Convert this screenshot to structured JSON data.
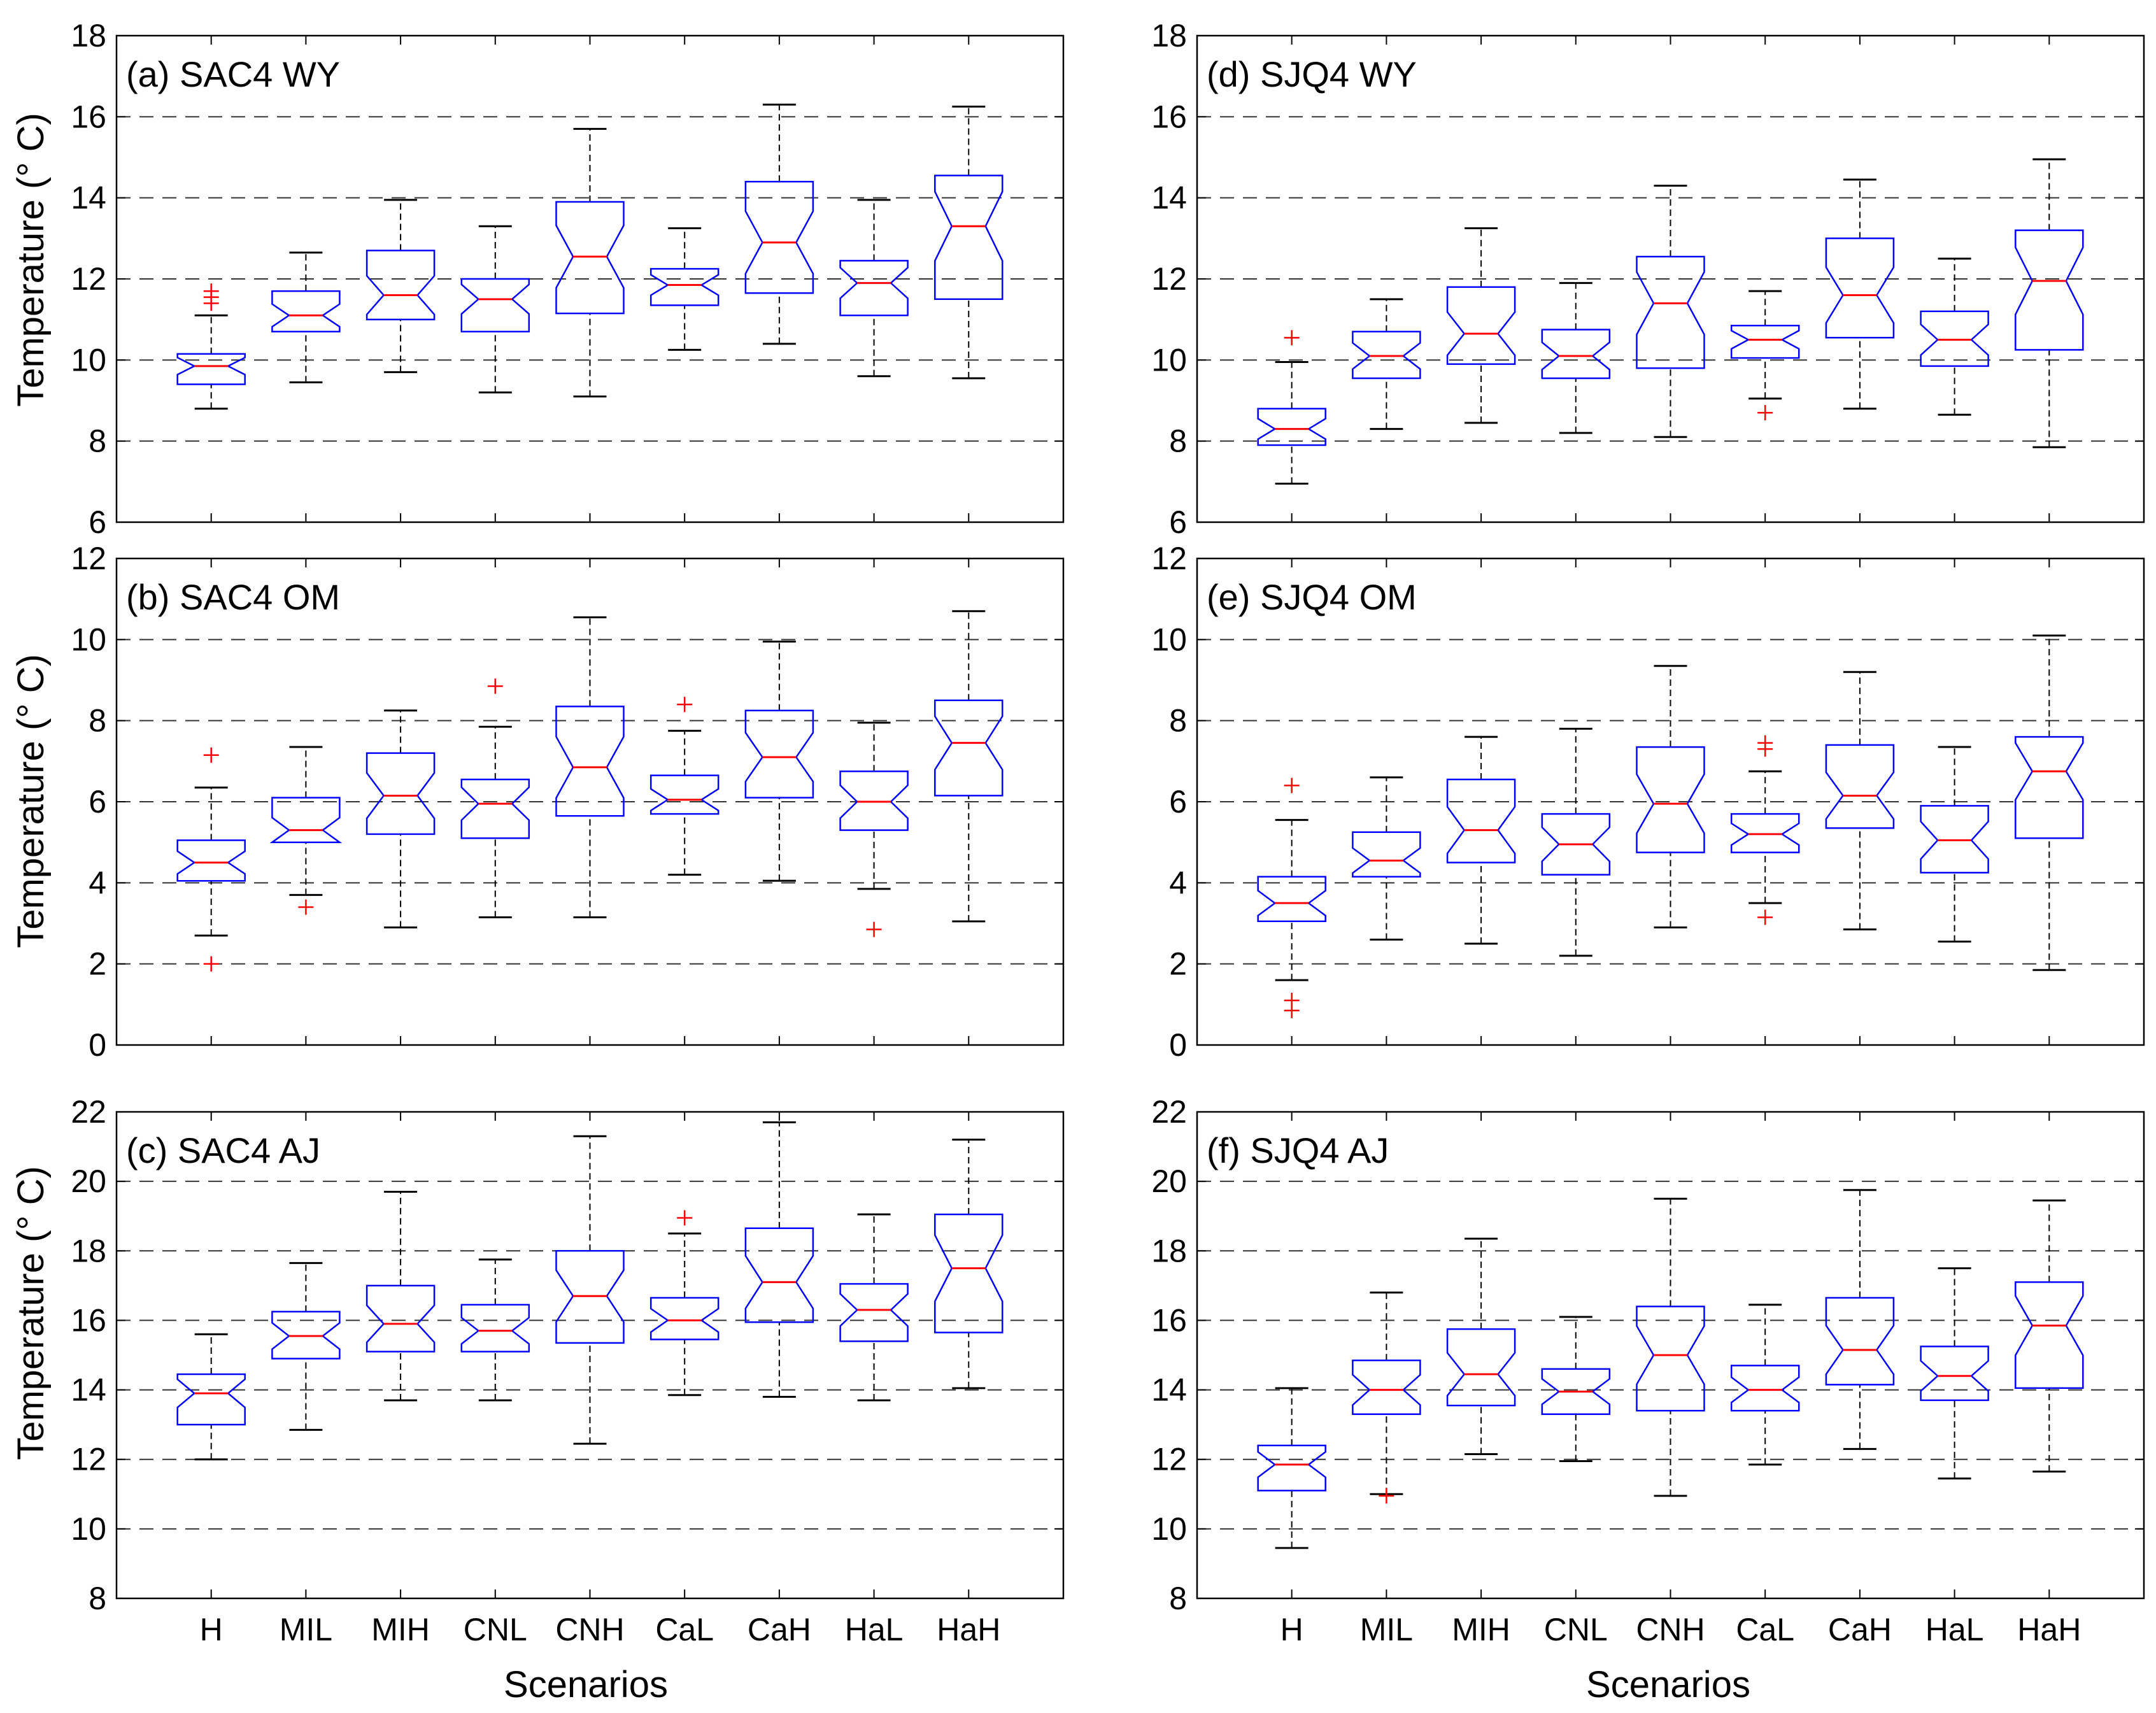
{
  "figure": {
    "x_tick_labels": [
      "H",
      "MIL",
      "MIH",
      "CNL",
      "CNH",
      "CaL",
      "CaH",
      "HaL",
      "HaH"
    ],
    "xlabel": "Scenarios",
    "ylabel": "Temperature (° C)"
  },
  "colors": {
    "box": "#0000ff",
    "median": "#ff0000",
    "whisker": "#000000",
    "outlier": "#ff0000",
    "grid": "#000000"
  },
  "chart_data": [
    {
      "type": "box",
      "title": "(a) SAC4 WY",
      "xlabel": "",
      "ylabel": "Temperature (° C)",
      "ylim": [
        6,
        18
      ],
      "yticks": [
        6,
        8,
        10,
        12,
        14,
        16,
        18
      ],
      "categories": [
        "H",
        "MIL",
        "MIH",
        "CNL",
        "CNH",
        "CaL",
        "CaH",
        "HaL",
        "HaH"
      ],
      "boxes": [
        {
          "min": 8.8,
          "q1": 9.4,
          "median": 9.85,
          "q3": 10.15,
          "max": 11.1,
          "outliers": [
            11.4,
            11.55,
            11.7
          ]
        },
        {
          "min": 9.45,
          "q1": 10.7,
          "median": 11.1,
          "q3": 11.7,
          "max": 12.65,
          "outliers": []
        },
        {
          "min": 9.7,
          "q1": 11.0,
          "median": 11.6,
          "q3": 12.7,
          "max": 13.95,
          "outliers": []
        },
        {
          "min": 9.2,
          "q1": 10.7,
          "median": 11.5,
          "q3": 12.0,
          "max": 13.3,
          "outliers": []
        },
        {
          "min": 9.1,
          "q1": 11.15,
          "median": 12.55,
          "q3": 13.9,
          "max": 15.7,
          "outliers": []
        },
        {
          "min": 10.25,
          "q1": 11.35,
          "median": 11.85,
          "q3": 12.25,
          "max": 13.25,
          "outliers": []
        },
        {
          "min": 10.4,
          "q1": 11.65,
          "median": 12.9,
          "q3": 14.4,
          "max": 16.3,
          "outliers": []
        },
        {
          "min": 9.6,
          "q1": 11.1,
          "median": 11.9,
          "q3": 12.45,
          "max": 13.95,
          "outliers": []
        },
        {
          "min": 9.55,
          "q1": 11.5,
          "median": 13.3,
          "q3": 14.55,
          "max": 16.25,
          "outliers": []
        }
      ]
    },
    {
      "type": "box",
      "title": "(b) SAC4 OM",
      "xlabel": "",
      "ylabel": "Temperature (° C)",
      "ylim": [
        0,
        12
      ],
      "yticks": [
        0,
        2,
        4,
        6,
        8,
        10,
        12
      ],
      "categories": [
        "H",
        "MIL",
        "MIH",
        "CNL",
        "CNH",
        "CaL",
        "CaH",
        "HaL",
        "HaH"
      ],
      "boxes": [
        {
          "min": 2.7,
          "q1": 4.05,
          "median": 4.5,
          "q3": 5.05,
          "max": 6.35,
          "outliers": [
            2.0,
            7.15
          ]
        },
        {
          "min": 3.7,
          "q1": 5.0,
          "median": 5.3,
          "q3": 6.1,
          "max": 7.35,
          "outliers": [
            3.4
          ]
        },
        {
          "min": 2.9,
          "q1": 5.2,
          "median": 6.15,
          "q3": 7.2,
          "max": 8.25,
          "outliers": []
        },
        {
          "min": 3.15,
          "q1": 5.1,
          "median": 5.95,
          "q3": 6.55,
          "max": 7.85,
          "outliers": [
            8.85
          ]
        },
        {
          "min": 3.15,
          "q1": 5.65,
          "median": 6.85,
          "q3": 8.35,
          "max": 10.55,
          "outliers": []
        },
        {
          "min": 4.2,
          "q1": 5.7,
          "median": 6.05,
          "q3": 6.65,
          "max": 7.75,
          "outliers": [
            8.4
          ]
        },
        {
          "min": 4.05,
          "q1": 6.1,
          "median": 7.1,
          "q3": 8.25,
          "max": 9.95,
          "outliers": []
        },
        {
          "min": 3.85,
          "q1": 5.3,
          "median": 6.0,
          "q3": 6.75,
          "max": 7.95,
          "outliers": [
            2.85
          ]
        },
        {
          "min": 3.05,
          "q1": 6.15,
          "median": 7.45,
          "q3": 8.5,
          "max": 10.7,
          "outliers": []
        }
      ]
    },
    {
      "type": "box",
      "title": "(c) SAC4 AJ",
      "xlabel": "Scenarios",
      "ylabel": "Temperature (° C)",
      "ylim": [
        8,
        22
      ],
      "yticks": [
        8,
        10,
        12,
        14,
        16,
        18,
        20,
        22
      ],
      "categories": [
        "H",
        "MIL",
        "MIH",
        "CNL",
        "CNH",
        "CaL",
        "CaH",
        "HaL",
        "HaH"
      ],
      "boxes": [
        {
          "min": 12.0,
          "q1": 13.0,
          "median": 13.9,
          "q3": 14.45,
          "max": 15.6,
          "outliers": []
        },
        {
          "min": 12.85,
          "q1": 14.9,
          "median": 15.55,
          "q3": 16.25,
          "max": 17.65,
          "outliers": []
        },
        {
          "min": 13.7,
          "q1": 15.1,
          "median": 15.9,
          "q3": 17.0,
          "max": 19.7,
          "outliers": []
        },
        {
          "min": 13.7,
          "q1": 15.1,
          "median": 15.7,
          "q3": 16.45,
          "max": 17.75,
          "outliers": []
        },
        {
          "min": 12.45,
          "q1": 15.35,
          "median": 16.7,
          "q3": 18.0,
          "max": 21.3,
          "outliers": []
        },
        {
          "min": 13.85,
          "q1": 15.45,
          "median": 16.0,
          "q3": 16.65,
          "max": 18.5,
          "outliers": [
            18.95
          ]
        },
        {
          "min": 13.8,
          "q1": 15.95,
          "median": 17.1,
          "q3": 18.65,
          "max": 21.7,
          "outliers": []
        },
        {
          "min": 13.7,
          "q1": 15.4,
          "median": 16.3,
          "q3": 17.05,
          "max": 19.05,
          "outliers": []
        },
        {
          "min": 14.05,
          "q1": 15.65,
          "median": 17.5,
          "q3": 19.05,
          "max": 21.2,
          "outliers": []
        }
      ]
    },
    {
      "type": "box",
      "title": "(d) SJQ4 WY",
      "xlabel": "",
      "ylabel": "",
      "ylim": [
        6,
        18
      ],
      "yticks": [
        6,
        8,
        10,
        12,
        14,
        16,
        18
      ],
      "categories": [
        "H",
        "MIL",
        "MIH",
        "CNL",
        "CNH",
        "CaL",
        "CaH",
        "HaL",
        "HaH"
      ],
      "boxes": [
        {
          "min": 6.95,
          "q1": 7.9,
          "median": 8.3,
          "q3": 8.8,
          "max": 9.95,
          "outliers": [
            10.55
          ]
        },
        {
          "min": 8.3,
          "q1": 9.55,
          "median": 10.1,
          "q3": 10.7,
          "max": 11.5,
          "outliers": []
        },
        {
          "min": 8.45,
          "q1": 9.9,
          "median": 10.65,
          "q3": 11.8,
          "max": 13.25,
          "outliers": []
        },
        {
          "min": 8.2,
          "q1": 9.55,
          "median": 10.1,
          "q3": 10.75,
          "max": 11.9,
          "outliers": []
        },
        {
          "min": 8.1,
          "q1": 9.8,
          "median": 11.4,
          "q3": 12.55,
          "max": 14.3,
          "outliers": []
        },
        {
          "min": 9.05,
          "q1": 10.05,
          "median": 10.5,
          "q3": 10.85,
          "max": 11.7,
          "outliers": [
            8.7
          ]
        },
        {
          "min": 8.8,
          "q1": 10.55,
          "median": 11.6,
          "q3": 13.0,
          "max": 14.45,
          "outliers": []
        },
        {
          "min": 8.65,
          "q1": 9.85,
          "median": 10.5,
          "q3": 11.2,
          "max": 12.5,
          "outliers": []
        },
        {
          "min": 7.85,
          "q1": 10.25,
          "median": 11.95,
          "q3": 13.2,
          "max": 14.95,
          "outliers": []
        }
      ]
    },
    {
      "type": "box",
      "title": "(e) SJQ4 OM",
      "xlabel": "",
      "ylabel": "",
      "ylim": [
        0,
        12
      ],
      "yticks": [
        0,
        2,
        4,
        6,
        8,
        10,
        12
      ],
      "categories": [
        "H",
        "MIL",
        "MIH",
        "CNL",
        "CNH",
        "CaL",
        "CaH",
        "HaL",
        "HaH"
      ],
      "boxes": [
        {
          "min": 1.6,
          "q1": 3.05,
          "median": 3.5,
          "q3": 4.15,
          "max": 5.55,
          "outliers": [
            0.85,
            1.1,
            6.4
          ]
        },
        {
          "min": 2.6,
          "q1": 4.15,
          "median": 4.55,
          "q3": 5.25,
          "max": 6.6,
          "outliers": []
        },
        {
          "min": 2.5,
          "q1": 4.5,
          "median": 5.3,
          "q3": 6.55,
          "max": 7.6,
          "outliers": []
        },
        {
          "min": 2.2,
          "q1": 4.2,
          "median": 4.95,
          "q3": 5.7,
          "max": 7.8,
          "outliers": []
        },
        {
          "min": 2.9,
          "q1": 4.75,
          "median": 5.95,
          "q3": 7.35,
          "max": 9.35,
          "outliers": []
        },
        {
          "min": 3.5,
          "q1": 4.75,
          "median": 5.2,
          "q3": 5.7,
          "max": 6.75,
          "outliers": [
            3.15,
            7.3,
            7.45
          ]
        },
        {
          "min": 2.85,
          "q1": 5.35,
          "median": 6.15,
          "q3": 7.4,
          "max": 9.2,
          "outliers": []
        },
        {
          "min": 2.55,
          "q1": 4.25,
          "median": 5.05,
          "q3": 5.9,
          "max": 7.35,
          "outliers": []
        },
        {
          "min": 1.85,
          "q1": 5.1,
          "median": 6.75,
          "q3": 7.6,
          "max": 10.1,
          "outliers": []
        }
      ]
    },
    {
      "type": "box",
      "title": "(f) SJQ4 AJ",
      "xlabel": "Scenarios",
      "ylabel": "",
      "ylim": [
        8,
        22
      ],
      "yticks": [
        8,
        10,
        12,
        14,
        16,
        18,
        20,
        22
      ],
      "categories": [
        "H",
        "MIL",
        "MIH",
        "CNL",
        "CNH",
        "CaL",
        "CaH",
        "HaL",
        "HaH"
      ],
      "boxes": [
        {
          "min": 9.45,
          "q1": 11.1,
          "median": 11.85,
          "q3": 12.4,
          "max": 14.05,
          "outliers": []
        },
        {
          "min": 11.0,
          "q1": 13.3,
          "median": 14.0,
          "q3": 14.85,
          "max": 16.8,
          "outliers": [
            10.95
          ]
        },
        {
          "min": 12.15,
          "q1": 13.55,
          "median": 14.45,
          "q3": 15.75,
          "max": 18.35,
          "outliers": []
        },
        {
          "min": 11.95,
          "q1": 13.3,
          "median": 13.95,
          "q3": 14.6,
          "max": 16.1,
          "outliers": []
        },
        {
          "min": 10.95,
          "q1": 13.4,
          "median": 15.0,
          "q3": 16.4,
          "max": 19.5,
          "outliers": []
        },
        {
          "min": 11.85,
          "q1": 13.4,
          "median": 14.0,
          "q3": 14.7,
          "max": 16.45,
          "outliers": []
        },
        {
          "min": 12.3,
          "q1": 14.15,
          "median": 15.15,
          "q3": 16.65,
          "max": 19.75,
          "outliers": []
        },
        {
          "min": 11.45,
          "q1": 13.7,
          "median": 14.4,
          "q3": 15.25,
          "max": 17.5,
          "outliers": []
        },
        {
          "min": 11.65,
          "q1": 14.05,
          "median": 15.85,
          "q3": 17.1,
          "max": 19.45,
          "outliers": []
        }
      ]
    }
  ]
}
